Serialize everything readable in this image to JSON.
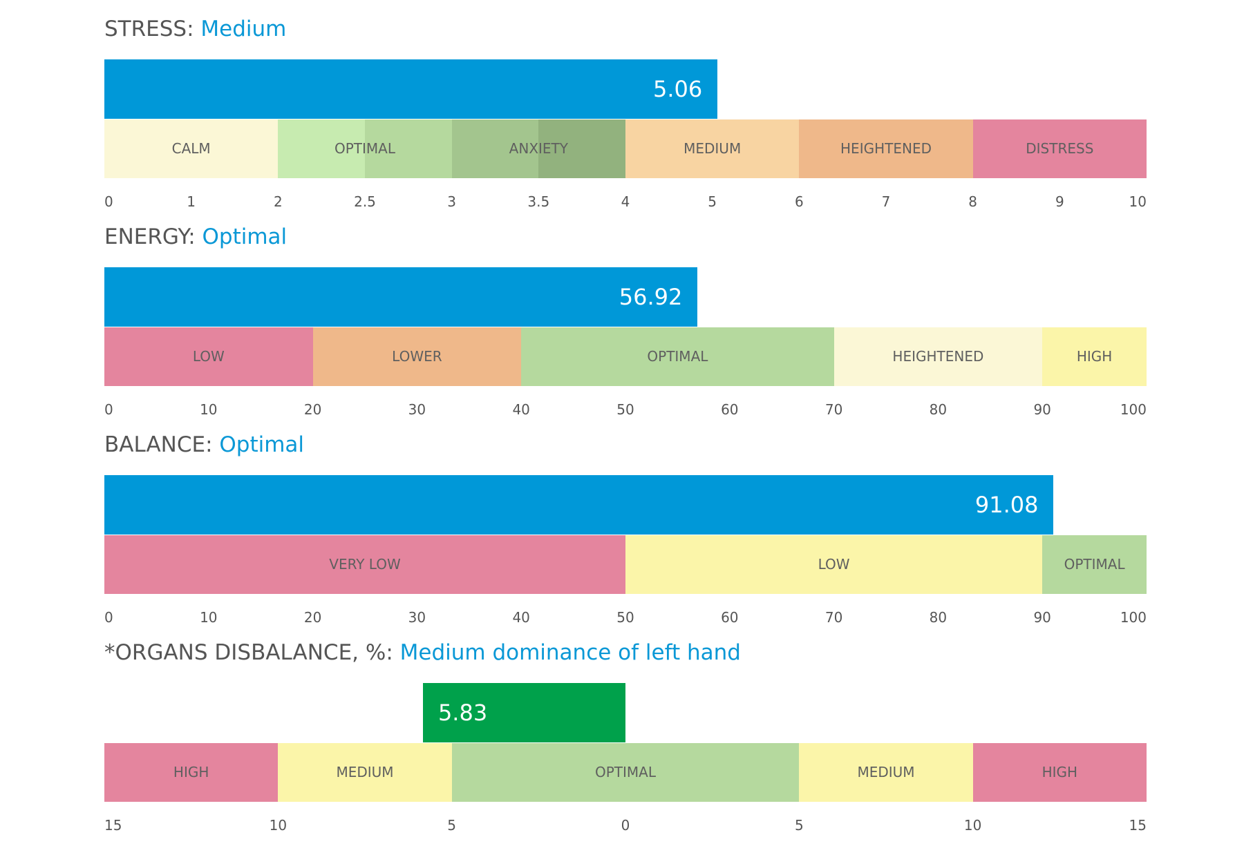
{
  "colors": {
    "value_bar": "#0098d8",
    "value_bar_organs": "#00a14b",
    "status_text": "#0a98d6",
    "red": "#e4859e",
    "orange": "#efb88a",
    "peach": "#f8d4a2",
    "pale_yellow": "#fbf7d6",
    "yellow": "#fbf5a9",
    "light_green": "#c7ebb0",
    "green": "#b5d99e",
    "mid_green": "#a3c58e",
    "dark_green": "#92b27e"
  },
  "chart_data": [
    {
      "type": "bar",
      "title": "STRESS:",
      "status": "Medium",
      "value": 5.06,
      "value_label": "5.06",
      "ticks": [
        "0",
        "1",
        "2",
        "2.5",
        "3",
        "3.5",
        "4",
        "5",
        "6",
        "7",
        "8",
        "9",
        "10"
      ],
      "bar_color": "value_bar",
      "zones": [
        {
          "label": "CALM",
          "from_tick": 0,
          "to_tick": 2,
          "color": "pale_yellow"
        },
        {
          "label": "OPTIMAL",
          "from_tick": 2,
          "to_tick": 4,
          "color": "green",
          "split_colors": [
            "light_green",
            "green"
          ]
        },
        {
          "label": "ANXIETY",
          "from_tick": 4,
          "to_tick": 6,
          "color": "mid_green",
          "split_colors": [
            "mid_green",
            "dark_green"
          ]
        },
        {
          "label": "MEDIUM",
          "from_tick": 6,
          "to_tick": 8,
          "color": "peach"
        },
        {
          "label": "HEIGHTENED",
          "from_tick": 8,
          "to_tick": 10,
          "color": "orange"
        },
        {
          "label": "DISTRESS",
          "from_tick": 10,
          "to_tick": 12,
          "color": "red"
        }
      ]
    },
    {
      "type": "bar",
      "title": "ENERGY:",
      "status": "Optimal",
      "value": 56.92,
      "value_label": "56.92",
      "ticks": [
        "0",
        "10",
        "20",
        "30",
        "40",
        "50",
        "60",
        "70",
        "80",
        "90",
        "100"
      ],
      "bar_color": "value_bar",
      "zones": [
        {
          "label": "LOW",
          "from_tick": 0,
          "to_tick": 2,
          "color": "red"
        },
        {
          "label": "LOWER",
          "from_tick": 2,
          "to_tick": 4,
          "color": "orange"
        },
        {
          "label": "OPTIMAL",
          "from_tick": 4,
          "to_tick": 7,
          "color": "green"
        },
        {
          "label": "HEIGHTENED",
          "from_tick": 7,
          "to_tick": 9,
          "color": "pale_yellow"
        },
        {
          "label": "HIGH",
          "from_tick": 9,
          "to_tick": 10,
          "color": "yellow"
        }
      ]
    },
    {
      "type": "bar",
      "title": "BALANCE:",
      "status": "Optimal",
      "value": 91.08,
      "value_label": "91.08",
      "ticks": [
        "0",
        "10",
        "20",
        "30",
        "40",
        "50",
        "60",
        "70",
        "80",
        "90",
        "100"
      ],
      "bar_color": "value_bar",
      "zones": [
        {
          "label": "VERY LOW",
          "from_tick": 0,
          "to_tick": 5,
          "color": "red"
        },
        {
          "label": "LOW",
          "from_tick": 5,
          "to_tick": 9,
          "color": "yellow"
        },
        {
          "label": "OPTIMAL",
          "from_tick": 9,
          "to_tick": 10,
          "color": "green"
        }
      ]
    },
    {
      "type": "bar",
      "title": "*ORGANS DISBALANCE, %:",
      "status": "Medium dominance of left hand",
      "value": 5.83,
      "value_label": "5.83",
      "side": "left",
      "ticks": [
        "15",
        "10",
        "5",
        "0",
        "5",
        "10",
        "15"
      ],
      "bar_color": "value_bar_organs",
      "zones": [
        {
          "label": "HIGH",
          "from_tick": 0,
          "to_tick": 1,
          "color": "red"
        },
        {
          "label": "MEDIUM",
          "from_tick": 1,
          "to_tick": 2,
          "color": "yellow"
        },
        {
          "label": "OPTIMAL",
          "from_tick": 2,
          "to_tick": 4,
          "color": "green"
        },
        {
          "label": "MEDIUM",
          "from_tick": 4,
          "to_tick": 5,
          "color": "yellow"
        },
        {
          "label": "HIGH",
          "from_tick": 5,
          "to_tick": 6,
          "color": "red"
        }
      ]
    }
  ]
}
